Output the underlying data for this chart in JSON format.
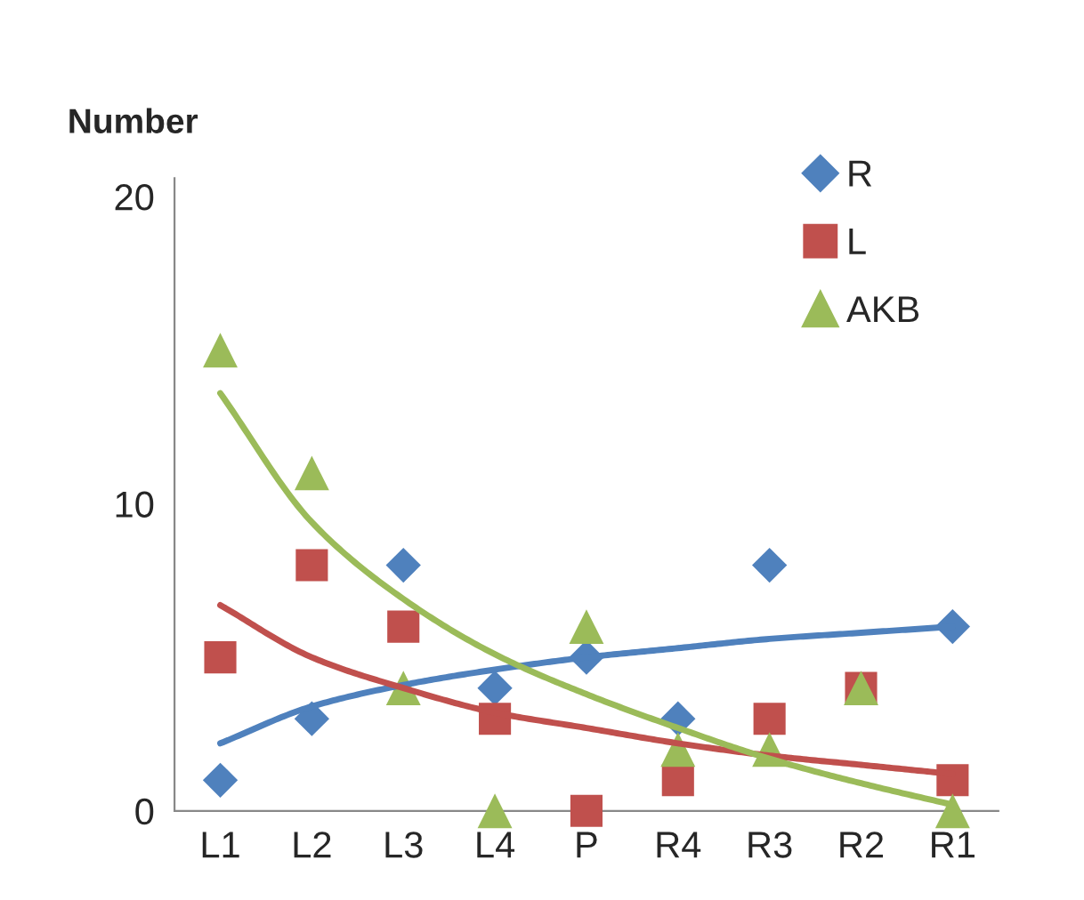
{
  "chart_data": {
    "type": "scatter",
    "ylabel": "Number",
    "categories": [
      "L1",
      "L2",
      "L3",
      "L4",
      "P",
      "R4",
      "R3",
      "R2",
      "R1"
    ],
    "series": [
      {
        "name": "R",
        "color": "#4f81bd",
        "marker": "diamond",
        "values": [
          1,
          3,
          8,
          4,
          5,
          3,
          8,
          null,
          6
        ]
      },
      {
        "name": "L",
        "color": "#c0504d",
        "marker": "square",
        "values": [
          5,
          8,
          6,
          3,
          0,
          1,
          3,
          4,
          1
        ]
      },
      {
        "name": "AKB",
        "color": "#9bbb59",
        "marker": "triangle",
        "values": [
          15,
          11,
          4,
          0,
          6,
          2,
          2,
          4,
          0
        ]
      },
      {
        "type": "line",
        "color": "#4f81bd",
        "values": [
          2.2,
          3.4,
          4.1,
          4.6,
          5.0,
          5.3,
          5.6,
          5.8,
          6.0
        ]
      },
      {
        "type": "line",
        "color": "#c0504d",
        "values": [
          6.7,
          5.0,
          4.0,
          3.2,
          2.7,
          2.2,
          1.8,
          1.5,
          1.2
        ]
      },
      {
        "type": "line",
        "color": "#9bbb59",
        "values": [
          13.6,
          9.4,
          6.9,
          5.1,
          3.8,
          2.7,
          1.7,
          0.9,
          0.2
        ]
      }
    ],
    "ylim": [
      0,
      20.6
    ],
    "yticks": [
      0,
      10,
      20
    ],
    "grid": false,
    "legend": "top right"
  }
}
